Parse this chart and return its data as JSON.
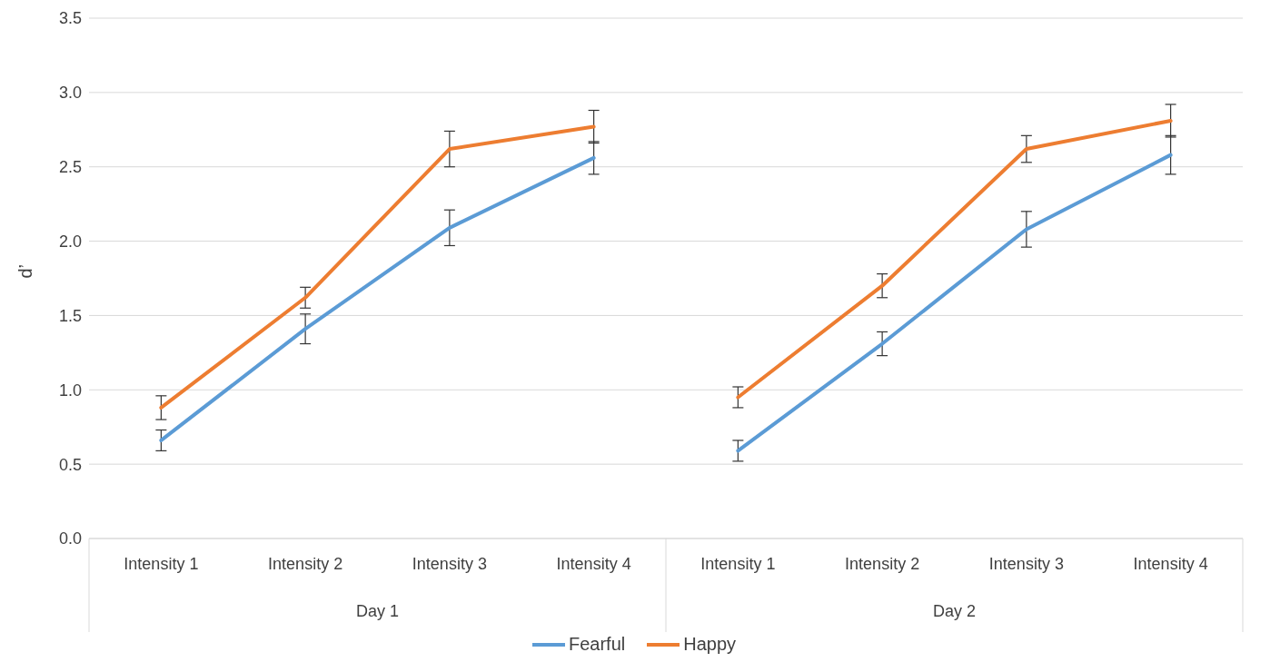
{
  "chart_data": {
    "type": "line",
    "ylabel": "d’",
    "categories": [
      "Intensity 1",
      "Intensity 2",
      "Intensity 3",
      "Intensity 4",
      "Intensity 1",
      "Intensity 2",
      "Intensity 3",
      "Intensity 4"
    ],
    "annotations": [
      "Day 1",
      "Day 2"
    ],
    "series": [
      {
        "name": "Fearful",
        "color": "#5b9bd5",
        "values": [
          0.66,
          1.41,
          2.09,
          2.56,
          0.59,
          1.31,
          2.08,
          2.58
        ],
        "errors": [
          0.07,
          0.1,
          0.12,
          0.11,
          0.07,
          0.08,
          0.12,
          0.13
        ]
      },
      {
        "name": "Happy",
        "color": "#ed7d31",
        "values": [
          0.88,
          1.62,
          2.62,
          2.77,
          0.95,
          1.7,
          2.62,
          2.81
        ],
        "errors": [
          0.08,
          0.07,
          0.12,
          0.11,
          0.07,
          0.08,
          0.09,
          0.11
        ]
      }
    ],
    "ylim": [
      0,
      3.5
    ],
    "yticks": [
      {
        "value": 0,
        "label": "0.0"
      },
      0.5,
      {
        "value": 1,
        "label": "1.0"
      },
      1.5,
      {
        "value": 2,
        "label": "2.0"
      },
      2.5,
      {
        "value": 3,
        "label": "3.0"
      },
      3.5
    ],
    "grid": "y",
    "legend": "bottom",
    "marker": "none",
    "line_style": "solid"
  }
}
